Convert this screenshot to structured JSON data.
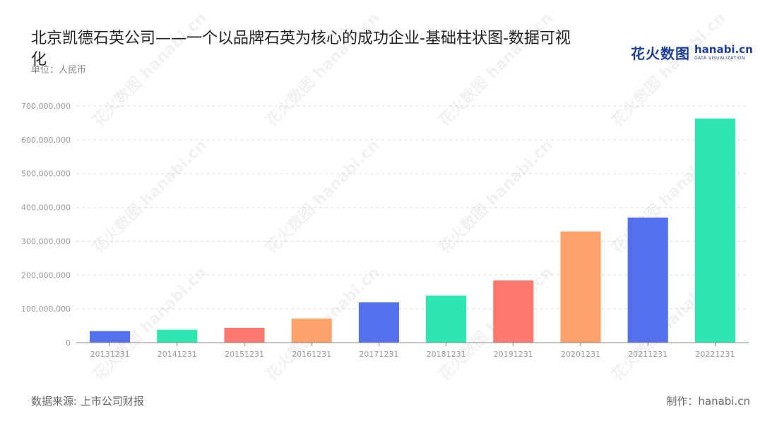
{
  "header": {
    "title": "北京凯德石英公司——一个以品牌石英为核心的成功企业-基础柱状图-数据可视化",
    "unit": "单位：人民币"
  },
  "logo": {
    "mark": "花火数图",
    "main": "hanabi.cn",
    "sub": "DATA VISUALIZATION",
    "color": "#1d3f9a"
  },
  "footer": {
    "source": "数据来源: 上市公司财报",
    "maker": "制作：hanabi.cn"
  },
  "chart_data": {
    "type": "bar",
    "categories": [
      "20131231",
      "20141231",
      "20151231",
      "20161231",
      "20171231",
      "20181231",
      "20191231",
      "20201231",
      "20211231",
      "20221231"
    ],
    "values": [
      34000000,
      38000000,
      44000000,
      71000000,
      119000000,
      139000000,
      184000000,
      329000000,
      370000000,
      663000000
    ],
    "colors": [
      "#5470ee",
      "#2ee6b0",
      "#ff7870",
      "#ffa16a",
      "#5470ee",
      "#2ee6b0",
      "#ff7870",
      "#ffa16a",
      "#5470ee",
      "#2ee6b0"
    ],
    "yticks": [
      "0",
      "100,000,000",
      "200,000,000",
      "300,000,000",
      "400,000,000",
      "500,000,000",
      "600,000,000",
      "700,000,000"
    ],
    "ylim": [
      0,
      700000000
    ],
    "grid": true,
    "title": "北京凯德石英公司——一个以品牌石英为核心的成功企业-基础柱状图-数据可视化",
    "ylabel": "单位：人民币"
  }
}
